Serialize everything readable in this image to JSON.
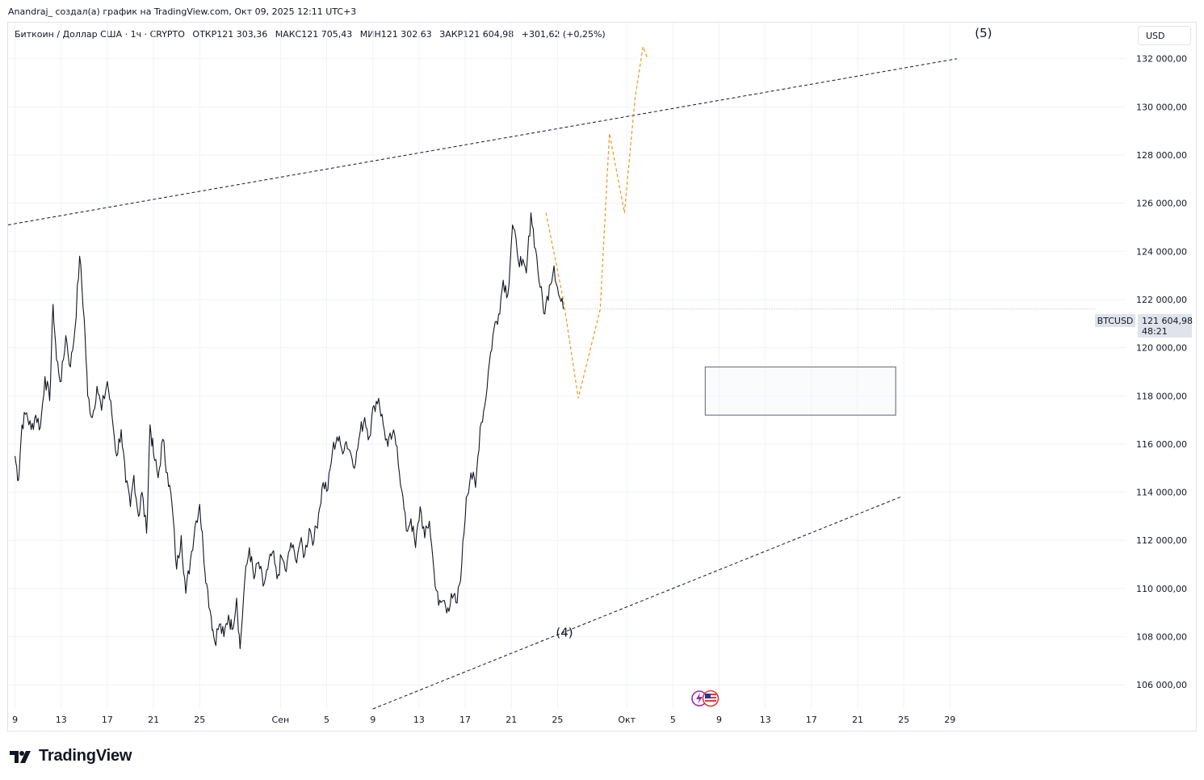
{
  "header": {
    "credit": "Anandraj_ создал(а) график на TradingView.com, Окт 09, 2025 12:11 UTC+3"
  },
  "symbol": {
    "name": "Биткоин / Доллар США · 1ч · CRYPTO",
    "open": "ОТКР121 303,36",
    "high": "МАКС121 705,43",
    "low": "МИН121 302,63",
    "close": "ЗАКР121 604,98",
    "change": "+301,62 (+0,25%)"
  },
  "currency_button": "USD",
  "price_tag": {
    "symbol": "BTCUSD",
    "price": "121 604,98",
    "countdown": "48:21"
  },
  "footer": {
    "brand": "TradingView"
  },
  "colors": {
    "candles": "#131722",
    "projection": "#f7931a",
    "trendline": "#131722",
    "box_border": "#787b86",
    "price_tag_bg": "#e0e3eb"
  },
  "icons": [
    "lightning-event-icon",
    "us-flag-event-icon"
  ],
  "chart_data": {
    "type": "line",
    "ylim": [
      105000,
      133500
    ],
    "y_ticks": [
      {
        "value": 106000,
        "label": "106 000,00"
      },
      {
        "value": 108000,
        "label": "108 000,00"
      },
      {
        "value": 110000,
        "label": "110 000,00"
      },
      {
        "value": 112000,
        "label": "112 000,00"
      },
      {
        "value": 114000,
        "label": "114 000,00"
      },
      {
        "value": 116000,
        "label": "116 000,00"
      },
      {
        "value": 118000,
        "label": "118 000,00"
      },
      {
        "value": 120000,
        "label": "120 000,00"
      },
      {
        "value": 122000,
        "label": "122 000,00"
      },
      {
        "value": 124000,
        "label": "124 000,00"
      },
      {
        "value": 126000,
        "label": "126 000,00"
      },
      {
        "value": 128000,
        "label": "128 000,00"
      },
      {
        "value": 130000,
        "label": "130 000,00"
      },
      {
        "value": 132000,
        "label": "132 000,00"
      }
    ],
    "x_range": [
      -0.6,
      81.6
    ],
    "x_ticks": [
      {
        "day": 0,
        "label": "9"
      },
      {
        "day": 4,
        "label": "13"
      },
      {
        "day": 8,
        "label": "17"
      },
      {
        "day": 12,
        "label": "21"
      },
      {
        "day": 16,
        "label": "25"
      },
      {
        "day": 23,
        "label": "Сен"
      },
      {
        "day": 27,
        "label": "5"
      },
      {
        "day": 31,
        "label": "9"
      },
      {
        "day": 35,
        "label": "13"
      },
      {
        "day": 39,
        "label": "17"
      },
      {
        "day": 43,
        "label": "21"
      },
      {
        "day": 47,
        "label": "25"
      },
      {
        "day": 53,
        "label": "Окт"
      },
      {
        "day": 57,
        "label": "5"
      },
      {
        "day": 61,
        "label": "9"
      },
      {
        "day": 65,
        "label": "13"
      },
      {
        "day": 69,
        "label": "17"
      },
      {
        "day": 73,
        "label": "21"
      },
      {
        "day": 77,
        "label": "25"
      },
      {
        "day": 81,
        "label": "29"
      }
    ],
    "series": [
      {
        "values": [
          [
            0.0,
            115500
          ],
          [
            0.3,
            114500
          ],
          [
            0.6,
            116800
          ],
          [
            1.0,
            117300
          ],
          [
            1.4,
            116600
          ],
          [
            1.8,
            117200
          ],
          [
            2.2,
            116700
          ],
          [
            2.6,
            118800
          ],
          [
            3.0,
            117800
          ],
          [
            3.3,
            121800
          ],
          [
            3.6,
            119500
          ],
          [
            4.0,
            118600
          ],
          [
            4.4,
            120500
          ],
          [
            4.8,
            119200
          ],
          [
            5.2,
            120800
          ],
          [
            5.6,
            123800
          ],
          [
            6.0,
            121200
          ],
          [
            6.3,
            118000
          ],
          [
            6.7,
            117100
          ],
          [
            7.1,
            118400
          ],
          [
            7.5,
            117400
          ],
          [
            8.0,
            118600
          ],
          [
            8.4,
            117200
          ],
          [
            8.8,
            115500
          ],
          [
            9.2,
            116600
          ],
          [
            9.6,
            114400
          ],
          [
            10.0,
            113400
          ],
          [
            10.3,
            114700
          ],
          [
            10.7,
            113000
          ],
          [
            11.0,
            114000
          ],
          [
            11.4,
            112300
          ],
          [
            11.7,
            116800
          ],
          [
            12.0,
            115600
          ],
          [
            12.4,
            114600
          ],
          [
            12.8,
            116200
          ],
          [
            13.2,
            114800
          ],
          [
            13.6,
            113500
          ],
          [
            14.0,
            110800
          ],
          [
            14.4,
            112200
          ],
          [
            14.8,
            109800
          ],
          [
            15.2,
            111200
          ],
          [
            15.6,
            112600
          ],
          [
            16.0,
            113500
          ],
          [
            16.3,
            111700
          ],
          [
            16.6,
            110200
          ],
          [
            17.0,
            108800
          ],
          [
            17.3,
            107800
          ],
          [
            17.7,
            108500
          ],
          [
            18.1,
            108000
          ],
          [
            18.5,
            108900
          ],
          [
            18.8,
            108300
          ],
          [
            19.2,
            109600
          ],
          [
            19.5,
            107500
          ],
          [
            19.9,
            110300
          ],
          [
            20.3,
            111700
          ],
          [
            20.7,
            110400
          ],
          [
            21.1,
            111100
          ],
          [
            21.5,
            110100
          ],
          [
            21.9,
            110800
          ],
          [
            22.3,
            111500
          ],
          [
            22.7,
            110400
          ],
          [
            23.1,
            111300
          ],
          [
            23.5,
            110700
          ],
          [
            23.9,
            111900
          ],
          [
            24.3,
            111200
          ],
          [
            24.7,
            111900
          ],
          [
            25.1,
            111400
          ],
          [
            25.5,
            112500
          ],
          [
            25.9,
            112000
          ],
          [
            26.3,
            113100
          ],
          [
            26.7,
            114400
          ],
          [
            27.1,
            114100
          ],
          [
            27.5,
            115700
          ],
          [
            27.9,
            116300
          ],
          [
            28.3,
            115800
          ],
          [
            28.7,
            116100
          ],
          [
            29.1,
            115600
          ],
          [
            29.5,
            115200
          ],
          [
            29.9,
            116500
          ],
          [
            30.3,
            117100
          ],
          [
            30.7,
            116300
          ],
          [
            31.1,
            117600
          ],
          [
            31.5,
            117900
          ],
          [
            31.9,
            116800
          ],
          [
            32.3,
            115900
          ],
          [
            32.7,
            116400
          ],
          [
            33.1,
            115900
          ],
          [
            33.5,
            114100
          ],
          [
            33.9,
            112400
          ],
          [
            34.3,
            112900
          ],
          [
            34.7,
            111700
          ],
          [
            35.1,
            113400
          ],
          [
            35.5,
            112100
          ],
          [
            35.9,
            112800
          ],
          [
            36.3,
            110700
          ],
          [
            36.7,
            109300
          ],
          [
            37.1,
            109500
          ],
          [
            37.5,
            109200
          ],
          [
            37.9,
            109600
          ],
          [
            38.3,
            109400
          ],
          [
            38.7,
            111000
          ],
          [
            39.1,
            113800
          ],
          [
            39.5,
            114800
          ],
          [
            39.9,
            114200
          ],
          [
            40.3,
            116700
          ],
          [
            40.7,
            117600
          ],
          [
            41.1,
            119400
          ],
          [
            41.5,
            120800
          ],
          [
            41.9,
            121400
          ],
          [
            42.3,
            122800
          ],
          [
            42.7,
            122200
          ],
          [
            43.1,
            125100
          ],
          [
            43.5,
            124000
          ],
          [
            43.9,
            123400
          ],
          [
            44.3,
            123100
          ],
          [
            44.7,
            125600
          ],
          [
            45.1,
            124100
          ],
          [
            45.5,
            122500
          ],
          [
            45.9,
            121400
          ],
          [
            46.3,
            122600
          ],
          [
            46.7,
            123400
          ],
          [
            47.1,
            122200
          ],
          [
            47.5,
            121600
          ]
        ]
      }
    ],
    "projection": [
      [
        46.0,
        125600
      ],
      [
        47.5,
        122000
      ],
      [
        48.8,
        117900
      ],
      [
        50.7,
        121600
      ],
      [
        51.5,
        128900
      ],
      [
        52.8,
        125600
      ],
      [
        53.7,
        130300
      ],
      [
        54.4,
        132500
      ],
      [
        54.8,
        132000
      ]
    ],
    "channel_upper": [
      [
        -0.6,
        125100
      ],
      [
        81.6,
        132000
      ]
    ],
    "channel_lower": [
      [
        31.0,
        105000
      ],
      [
        76.7,
        113800
      ]
    ],
    "target_zone": {
      "x": [
        59.8,
        76.3
      ],
      "y": [
        117200,
        119200
      ]
    },
    "wave_labels": [
      {
        "text": "(4)",
        "x": 47.6,
        "y": 108000
      },
      {
        "text": "(5)",
        "x": 83.9,
        "y": 132900
      }
    ],
    "last_price": 121604.98
  }
}
